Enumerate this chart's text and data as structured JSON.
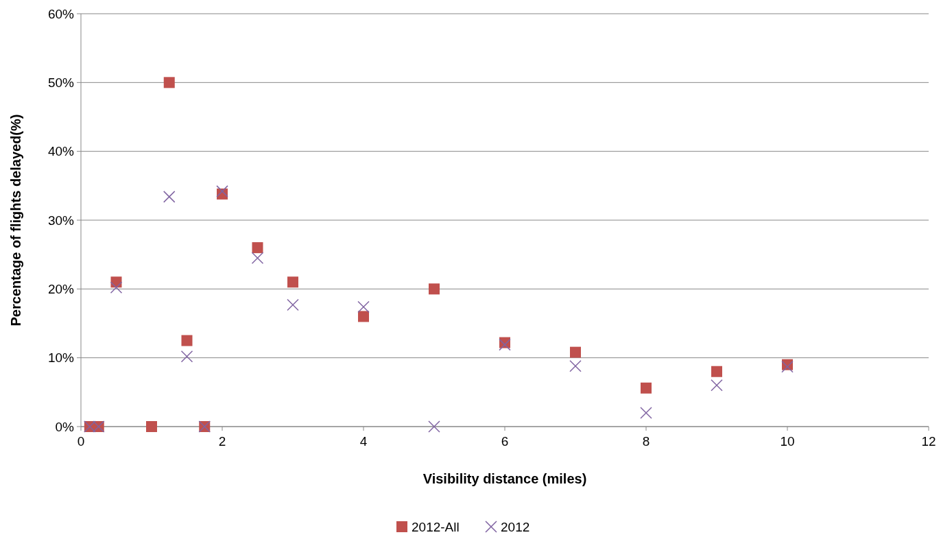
{
  "chart_data": {
    "type": "scatter",
    "xlabel": "Visibility distance (miles)",
    "ylabel": "Percentage of flights delayed(%)",
    "xlim": [
      0,
      12
    ],
    "xticks": [
      0,
      2,
      4,
      6,
      8,
      10,
      12
    ],
    "ylim": [
      0,
      60
    ],
    "yticks": [
      {
        "value": 0,
        "label": "0%"
      },
      {
        "value": 10,
        "label": "10%"
      },
      {
        "value": 20,
        "label": "20%"
      },
      {
        "value": 30,
        "label": "30%"
      },
      {
        "value": 40,
        "label": "40%"
      },
      {
        "value": 50,
        "label": "50%"
      },
      {
        "value": 60,
        "label": "60%"
      }
    ],
    "grid": "y",
    "legend": "bottom",
    "series": [
      {
        "name": "2012-All",
        "color": "#c0504d",
        "marker": "square",
        "x": [
          0.125,
          0.25,
          0.5,
          1,
          1.25,
          1.5,
          1.75,
          2,
          2.5,
          3,
          4,
          5,
          6,
          7,
          8,
          9,
          10
        ],
        "values": [
          0,
          0,
          21,
          0,
          50,
          12.5,
          0,
          33.8,
          26,
          21,
          16,
          20,
          12.2,
          10.8,
          5.6,
          8,
          9
        ]
      },
      {
        "name": "2012",
        "color": "#8064a2",
        "marker": "cross",
        "x": [
          0.125,
          0.25,
          0.5,
          1.25,
          1.5,
          1.75,
          2,
          2.5,
          3,
          4,
          5,
          6,
          7,
          8,
          9,
          10
        ],
        "values": [
          0,
          0,
          20.2,
          33.4,
          10.2,
          0,
          34.2,
          24.5,
          17.7,
          17.4,
          0,
          11.9,
          8.8,
          2,
          6,
          8.7
        ]
      }
    ]
  }
}
